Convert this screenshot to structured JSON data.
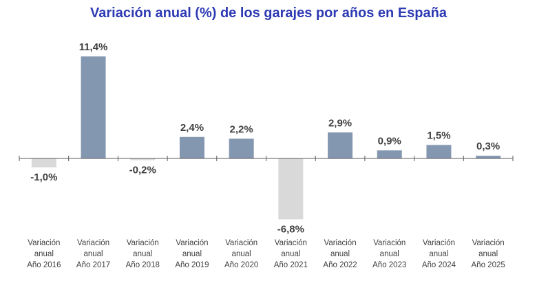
{
  "chart_data": {
    "type": "bar",
    "title": "Variación anual (%) de los garajes por años en España",
    "categories": [
      [
        "Variación",
        "anual",
        "Año 2016"
      ],
      [
        "Variación",
        "anual",
        "Año 2017"
      ],
      [
        "Variación",
        "anual",
        "Año 2018"
      ],
      [
        "Variación",
        "anual",
        "Año 2019"
      ],
      [
        "Variación",
        "anual",
        "Año 2020"
      ],
      [
        "Variación",
        "anual",
        "Año 2021"
      ],
      [
        "Variación",
        "anual",
        "Año 2022"
      ],
      [
        "Variación",
        "anual",
        "Año 2023"
      ],
      [
        "Variación",
        "anual",
        "Año 2024"
      ],
      [
        "Variación",
        "anual",
        "Año 2025"
      ]
    ],
    "values": [
      -1.0,
      11.4,
      -0.2,
      2.4,
      2.2,
      -6.8,
      2.9,
      0.9,
      1.5,
      0.3
    ],
    "data_labels": [
      "-1,0%",
      "11,4%",
      "-0,2%",
      "2,4%",
      "2,2%",
      "-6,8%",
      "2,9%",
      "0,9%",
      "1,5%",
      "0,3%"
    ],
    "xlabel": "",
    "ylabel": "",
    "grid": false,
    "legend": "none",
    "colors": {
      "positive": "#8497b0",
      "negative": "#d9d9d9",
      "title": "#2e3ab4",
      "axis": "#595959"
    }
  }
}
